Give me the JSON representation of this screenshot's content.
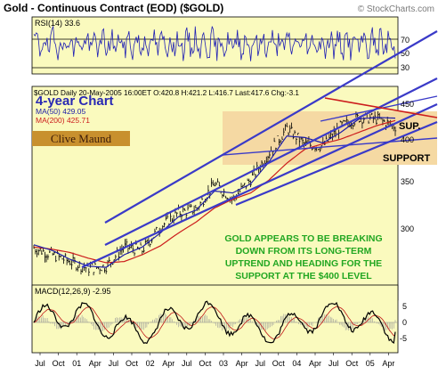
{
  "header": {
    "title": "Gold - Continuous Contract (EOD) ($GOLD)",
    "watermark": "© StockCharts.com"
  },
  "rsi": {
    "label": "RSI(14) 33.6",
    "levels": [
      "70",
      "50",
      "30"
    ]
  },
  "price": {
    "chart_label": "4-year Chart",
    "info_line": "$GOLD Daily 20-May-2005 16:00ET O:420.8 H:421.2 L:416.7 Last:417.6 Chg:-3.1",
    "ma50": "MA(50) 429.05",
    "ma200": "MA(200) 425.71",
    "logo": "Clive Maund",
    "sup_label": "SUP.",
    "support_label": "SUPPORT",
    "y_ticks": [
      "450",
      "400",
      "350",
      "300"
    ],
    "annotation": [
      "GOLD APPEARS TO BE BREAKING",
      "DOWN FROM ITS LONG-TERM",
      "UPTREND AND HEADING FOR THE",
      "SUPPORT AT THE $400 LEVEL"
    ]
  },
  "macd": {
    "label": "MACD(12,26,9) -2.95",
    "y_ticks": [
      "5",
      "0",
      "-5"
    ]
  },
  "x_axis": {
    "labels": [
      "Jul",
      "Oct",
      "01",
      "Apr",
      "Jul",
      "Oct",
      "02",
      "Apr",
      "Jul",
      "Oct",
      "03",
      "Apr",
      "Jul",
      "Oct",
      "04",
      "Apr",
      "Jul",
      "Oct",
      "05",
      "Apr"
    ]
  },
  "colors": {
    "panel_bg": "#fafabe",
    "support_band": "#f5d9a3",
    "price_bars": "#000000",
    "ma50": "#1c1ca8",
    "ma200": "#cc1c1c",
    "trendlines": "#3a3ac8",
    "annotation_text": "#22a722",
    "rsi_line": "#2020b4",
    "macd_line": "#000000",
    "macd_signal": "#c01818"
  },
  "chart_data": {
    "type": "line",
    "title": "Gold - Continuous Contract (EOD) ($GOLD)",
    "y_scale": "log",
    "ylim": [
      260,
      460
    ],
    "x": [
      "Jul 00",
      "Oct 00",
      "Jan 01",
      "Apr 01",
      "Jul 01",
      "Oct 01",
      "Jan 02",
      "Apr 02",
      "Jul 02",
      "Oct 02",
      "Jan 03",
      "Apr 03",
      "Jul 03",
      "Oct 03",
      "Jan 04",
      "Apr 04",
      "Jul 04",
      "Oct 04",
      "Jan 05",
      "Apr 05",
      "May 05"
    ],
    "series": [
      {
        "name": "$GOLD",
        "values": [
          282,
          276,
          270,
          264,
          266,
          283,
          280,
          302,
          316,
          320,
          347,
          330,
          352,
          383,
          415,
          394,
          392,
          418,
          430,
          428,
          417.6
        ]
      },
      {
        "name": "MA(50)",
        "values": [
          285,
          280,
          272,
          266,
          265,
          276,
          283,
          296,
          312,
          319,
          339,
          337,
          347,
          372,
          405,
          403,
          396,
          410,
          428,
          430,
          429.05
        ]
      },
      {
        "name": "MA(200)",
        "values": [
          283,
          281,
          278,
          273,
          269,
          270,
          276,
          284,
          296,
          307,
          321,
          330,
          337,
          351,
          371,
          388,
          395,
          401,
          410,
          419,
          425.71
        ]
      }
    ],
    "support_level": 400,
    "rsi": {
      "label": "RSI(14)",
      "last": 33.6,
      "ylim": [
        15,
        85
      ],
      "levels": [
        70,
        50,
        30
      ]
    },
    "macd": {
      "label": "MACD(12,26,9)",
      "last": -2.95,
      "ylim": [
        -9,
        8
      ]
    }
  }
}
